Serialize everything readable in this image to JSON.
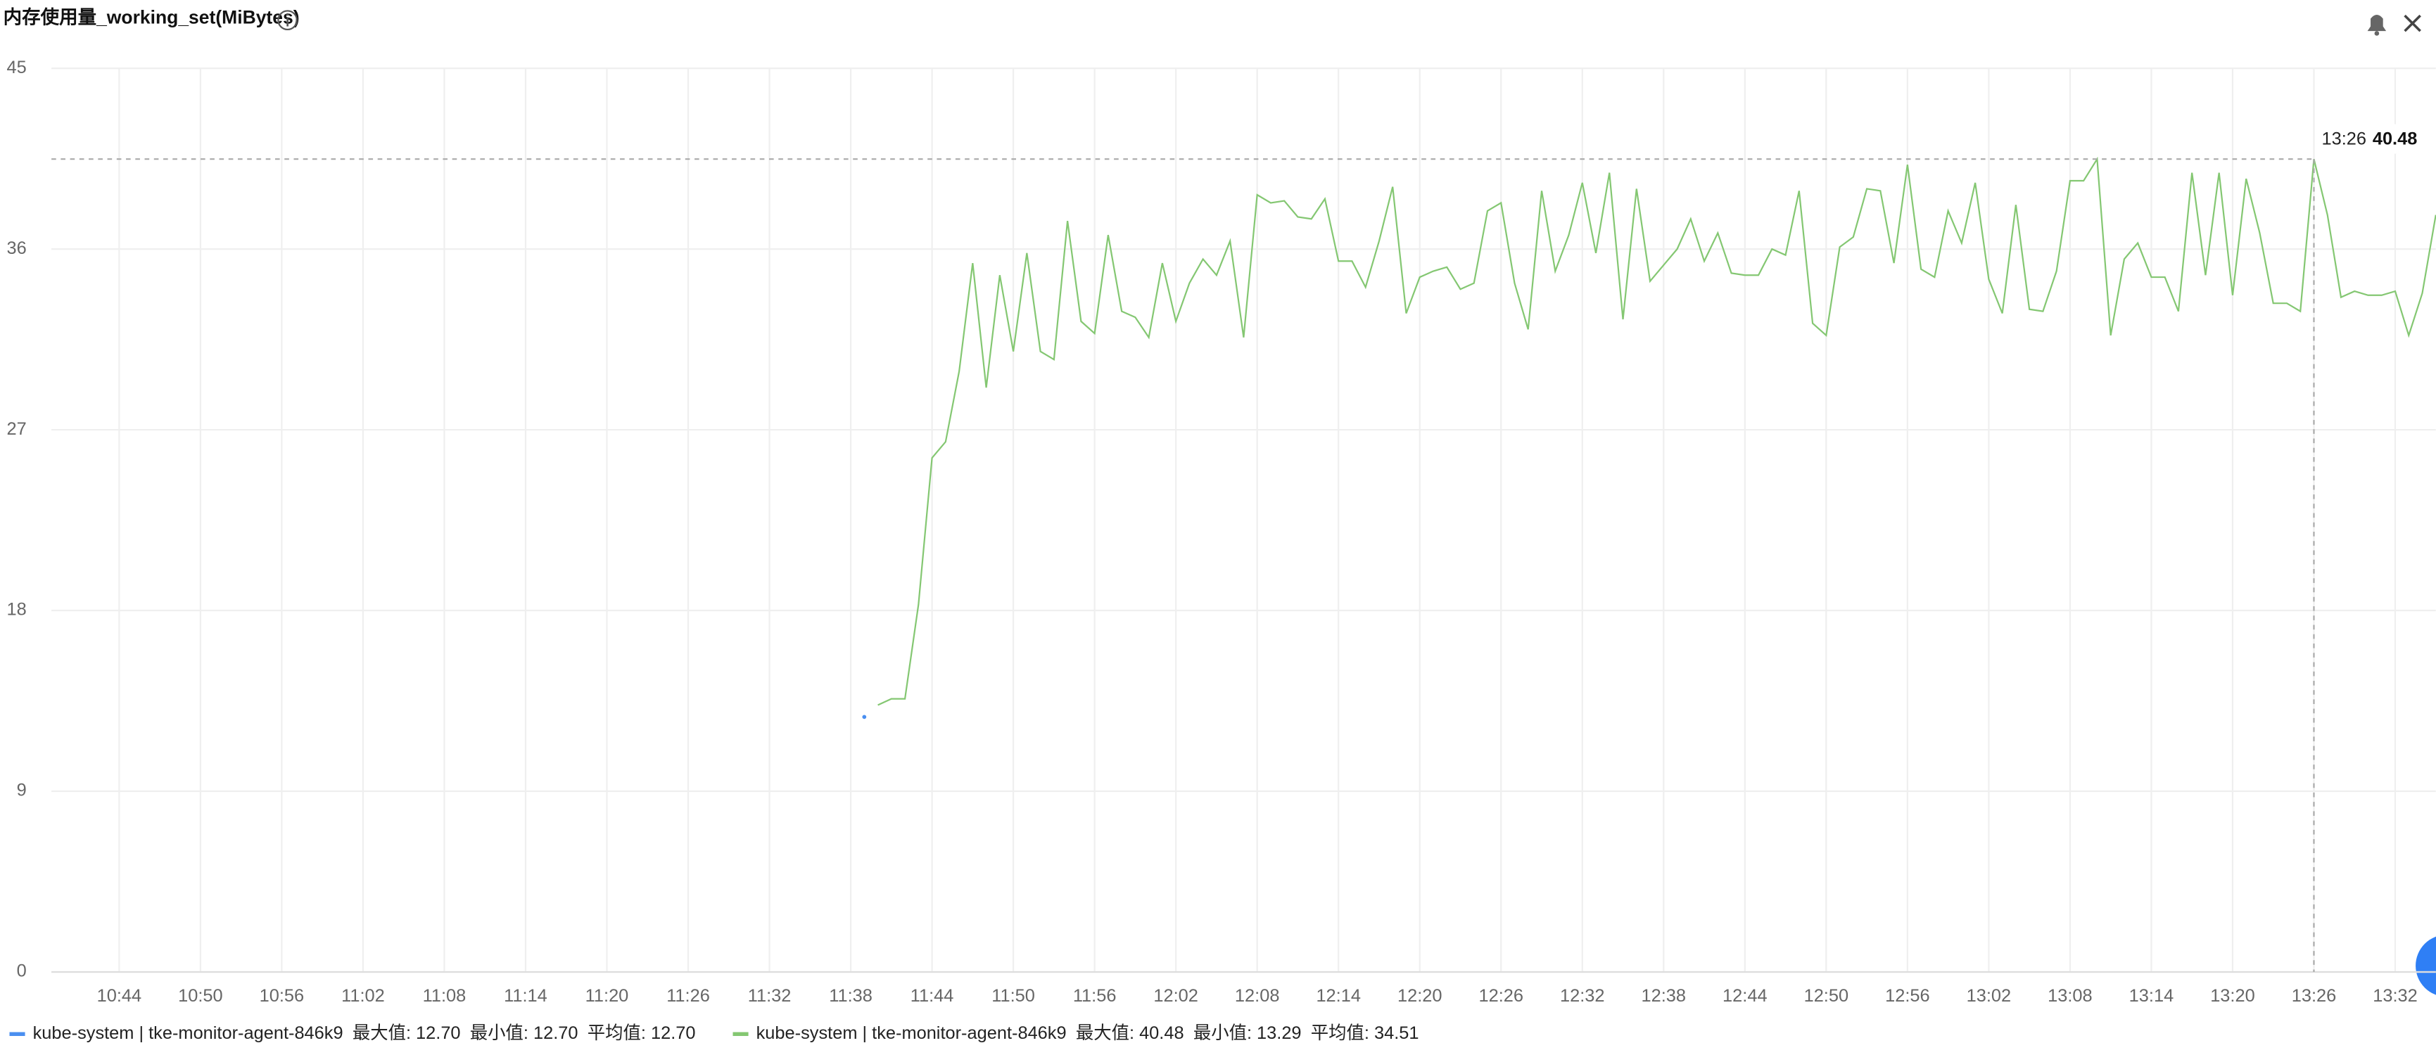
{
  "chart_data": {
    "type": "line",
    "title": "内存使用量_working_set(MiBytes)",
    "xlim": [
      "10:39",
      "13:35"
    ],
    "xticks": [
      "10:44",
      "10:50",
      "10:56",
      "11:02",
      "11:08",
      "11:14",
      "11:20",
      "11:26",
      "11:32",
      "11:38",
      "11:44",
      "11:50",
      "11:56",
      "12:02",
      "12:08",
      "12:14",
      "12:20",
      "12:26",
      "12:32",
      "12:38",
      "12:44",
      "12:50",
      "12:56",
      "13:02",
      "13:08",
      "13:14",
      "13:20",
      "13:26",
      "13:32"
    ],
    "ylim": [
      0,
      45
    ],
    "yticks": [
      0,
      9,
      18,
      27,
      36,
      45
    ],
    "grid": true,
    "series": [
      {
        "name": "kube-system | tke-monitor-agent-846k9",
        "color": "#4a8ff0",
        "stats": [
          "最大值: 12.70",
          "最小值: 12.70",
          "平均值: 12.70"
        ],
        "x": [
          "11:39"
        ],
        "values": [
          12.7
        ]
      },
      {
        "name": "kube-system | tke-monitor-agent-846k9",
        "color": "#84c772",
        "stats": [
          "最大值: 40.48",
          "最小值: 13.29",
          "平均值: 34.51"
        ],
        "x": [
          "11:40",
          "11:41",
          "11:42",
          "11:43",
          "11:44",
          "11:45",
          "11:46",
          "11:47",
          "11:48",
          "11:49",
          "11:50",
          "11:51",
          "11:52",
          "11:53",
          "11:54",
          "11:55",
          "11:56",
          "11:57",
          "11:58",
          "11:59",
          "12:00",
          "12:01",
          "12:02",
          "12:03",
          "12:04",
          "12:05",
          "12:06",
          "12:07",
          "12:08",
          "12:09",
          "12:10",
          "12:11",
          "12:12",
          "12:13",
          "12:14",
          "12:15",
          "12:16",
          "12:17",
          "12:18",
          "12:19",
          "12:20",
          "12:21",
          "12:22",
          "12:23",
          "12:24",
          "12:25",
          "12:26",
          "12:27",
          "12:28",
          "12:29",
          "12:30",
          "12:31",
          "12:32",
          "12:33",
          "12:34",
          "12:35",
          "12:36",
          "12:37",
          "12:38",
          "12:39",
          "12:40",
          "12:41",
          "12:42",
          "12:43",
          "12:44",
          "12:45",
          "12:46",
          "12:47",
          "12:48",
          "12:49",
          "12:50",
          "12:51",
          "12:52",
          "12:53",
          "12:54",
          "12:55",
          "12:56",
          "12:57",
          "12:58",
          "12:59",
          "13:00",
          "13:01",
          "13:02",
          "13:03",
          "13:04",
          "13:05",
          "13:06",
          "13:07",
          "13:08",
          "13:09",
          "13:10",
          "13:11",
          "13:12",
          "13:13",
          "13:14",
          "13:15",
          "13:16",
          "13:17",
          "13:18",
          "13:19",
          "13:20",
          "13:21",
          "13:22",
          "13:23",
          "13:24",
          "13:25",
          "13:26",
          "13:27",
          "13:28",
          "13:29",
          "13:30",
          "13:31",
          "13:32",
          "13:33",
          "13:34",
          "13:35"
        ],
        "values": [
          13.29,
          13.6,
          13.6,
          18.3,
          25.6,
          26.4,
          29.9,
          35.3,
          29.1,
          34.7,
          30.9,
          35.8,
          30.9,
          30.5,
          37.4,
          32.4,
          31.8,
          36.7,
          32.9,
          32.6,
          31.6,
          35.3,
          32.4,
          34.3,
          35.5,
          34.7,
          36.4,
          31.6,
          38.7,
          38.3,
          38.4,
          37.6,
          37.5,
          38.5,
          35.4,
          35.4,
          34.1,
          36.4,
          39.1,
          32.8,
          34.6,
          34.9,
          35.1,
          34.0,
          34.3,
          37.9,
          38.3,
          34.3,
          32.0,
          38.9,
          34.9,
          36.7,
          39.3,
          35.8,
          39.8,
          32.5,
          39.0,
          34.4,
          35.2,
          36.0,
          37.5,
          35.4,
          36.8,
          34.8,
          34.7,
          34.7,
          36.0,
          35.7,
          38.9,
          32.3,
          31.7,
          36.1,
          36.6,
          39.0,
          38.9,
          35.3,
          40.2,
          35.0,
          34.6,
          37.9,
          36.3,
          39.3,
          34.5,
          32.8,
          38.2,
          33.0,
          32.9,
          34.9,
          39.4,
          39.4,
          40.48,
          31.7,
          35.5,
          36.3,
          34.6,
          34.6,
          32.9,
          39.8,
          34.7,
          39.8,
          33.7,
          39.5,
          36.8,
          33.3,
          33.3,
          32.9,
          40.48,
          37.7,
          33.6,
          33.9,
          33.7,
          33.7,
          33.9,
          31.7,
          33.8,
          37.7
        ]
      }
    ],
    "tooltip": {
      "x": "13:26",
      "value": 40.48
    }
  }
}
